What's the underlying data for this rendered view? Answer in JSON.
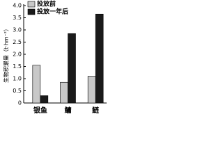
{
  "chart_data": {
    "type": "bar",
    "y_label": "生物积累量（t·hm⁻²）",
    "categories": [
      "银鱼",
      "鳙",
      "鲢"
    ],
    "series": [
      {
        "name": "投放前",
        "color": "#c8c8c8",
        "values": [
          1.55,
          0.85,
          1.1
        ]
      },
      {
        "name": "投放一年后",
        "color": "#1a1a1a",
        "values": [
          0.3,
          2.85,
          3.65
        ]
      }
    ],
    "ylim": [
      0,
      4
    ],
    "yticks": [
      0,
      0.5,
      {
        "value": 1,
        "label": "1.0"
      },
      1.5,
      {
        "value": 2,
        "label": "2.0"
      },
      2.5,
      {
        "value": 3,
        "label": "3.0"
      },
      3.5,
      {
        "value": 4,
        "label": "4.0"
      }
    ],
    "legend": "upper left"
  }
}
